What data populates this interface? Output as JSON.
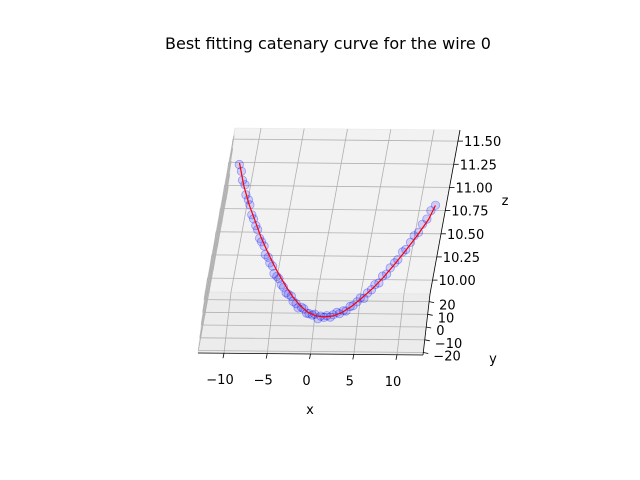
{
  "chart_data": {
    "type": "scatter",
    "projection": "3d",
    "title": "Best fitting catenary curve for the wire 0",
    "xlabel": "x",
    "ylabel": "y",
    "zlabel": "z",
    "xlim": [
      -13,
      13
    ],
    "ylim": [
      -22,
      26
    ],
    "zlim": [
      9.85,
      11.62
    ],
    "xticks": [
      -10,
      -5,
      0,
      5,
      10
    ],
    "yticks": [
      -20,
      -10,
      0,
      10,
      20
    ],
    "zticks": [
      10.0,
      10.25,
      10.5,
      10.75,
      11.0,
      11.25,
      11.5
    ],
    "xtick_labels": [
      "−10",
      "−5",
      "0",
      "5",
      "10"
    ],
    "ytick_labels": [
      "−20",
      "−10",
      "0",
      "10",
      "20"
    ],
    "ztick_labels": [
      "10.00",
      "10.25",
      "10.50",
      "10.75",
      "11.00",
      "11.25",
      "11.50"
    ],
    "grid": true,
    "series": [
      {
        "kind": "scatter",
        "color": "#0000ff",
        "alpha": 0.15,
        "x": [
          -12.0,
          -11.6,
          -11.3,
          -10.9,
          -10.6,
          -10.2,
          -9.9,
          -9.5,
          -9.2,
          -8.8,
          -8.5,
          -8.1,
          -7.8,
          -7.4,
          -7.1,
          -6.7,
          -6.4,
          -6.0,
          -5.7,
          -5.3,
          -5.0,
          -4.6,
          -4.3,
          -3.9,
          -3.6,
          -3.2,
          -2.9,
          -2.5,
          -2.2,
          -1.8,
          -1.5,
          -1.1,
          -0.8,
          -0.4,
          -0.1,
          0.3,
          0.6,
          1.0,
          1.3,
          1.7,
          2.0,
          2.4,
          2.7,
          3.1,
          3.4,
          3.8,
          4.1,
          4.5,
          4.8,
          5.2,
          5.5,
          5.9,
          6.2,
          6.6,
          6.9,
          7.3,
          7.6,
          8.0,
          8.3,
          8.7,
          9.0,
          9.4,
          9.7,
          10.1,
          10.4,
          10.8,
          11.1,
          11.5
        ],
        "y": [
          -1.2,
          0.8,
          -0.4,
          1.1,
          -0.9,
          0.3,
          1.4,
          -1.3,
          0.6,
          -0.2,
          1.0,
          -0.7,
          0.2,
          1.3,
          -1.1,
          0.5,
          -0.3,
          0.9,
          -1.4,
          0.1,
          1.2,
          -0.6,
          0.4,
          -1.0,
          0.7,
          1.5,
          -0.5,
          0.0,
          -1.2,
          0.8,
          1.1,
          -0.8,
          0.3,
          -0.1,
          1.3,
          -1.5,
          0.6,
          -0.4,
          0.9,
          -0.9,
          0.2,
          1.4,
          -0.3,
          0.5,
          -1.1,
          1.0,
          -0.6,
          0.4,
          1.2,
          -1.3,
          0.1,
          -0.2,
          0.8,
          -0.7,
          1.1,
          -1.0,
          0.3,
          0.6,
          -0.4,
          1.3,
          -1.2,
          0.0,
          0.9,
          -0.8,
          0.5,
          -0.5,
          1.0,
          0.2
        ],
        "z": [
          11.6,
          11.5,
          11.42,
          11.35,
          11.27,
          11.2,
          11.13,
          11.06,
          10.99,
          10.93,
          10.87,
          10.8,
          10.75,
          10.69,
          10.63,
          10.58,
          10.53,
          10.48,
          10.43,
          10.38,
          10.34,
          10.3,
          10.26,
          10.22,
          10.18,
          10.15,
          10.12,
          10.09,
          10.06,
          10.04,
          10.02,
          10.0,
          9.98,
          9.97,
          9.96,
          9.95,
          9.95,
          9.95,
          9.95,
          9.96,
          9.97,
          9.98,
          9.99,
          10.01,
          10.03,
          10.05,
          10.08,
          10.11,
          10.14,
          10.17,
          10.21,
          10.25,
          10.29,
          10.33,
          10.38,
          10.43,
          10.48,
          10.53,
          10.58,
          10.64,
          10.7,
          10.76,
          10.82,
          10.88,
          10.95,
          11.02,
          11.09,
          11.16
        ]
      },
      {
        "kind": "line",
        "color": "#ff0000",
        "x": [
          -12.0,
          -11.0,
          -10.0,
          -9.0,
          -8.0,
          -7.0,
          -6.0,
          -5.0,
          -4.0,
          -3.0,
          -2.0,
          -1.0,
          0.0,
          1.0,
          2.0,
          3.0,
          4.0,
          5.0,
          6.0,
          7.0,
          8.0,
          9.0,
          10.0,
          11.0,
          11.5
        ],
        "y": [
          0,
          0,
          0,
          0,
          0,
          0,
          0,
          0,
          0,
          0,
          0,
          0,
          0,
          0,
          0,
          0,
          0,
          0,
          0,
          0,
          0,
          0,
          0,
          0,
          0
        ],
        "z": [
          11.6,
          11.35,
          11.15,
          10.98,
          10.81,
          10.66,
          10.52,
          10.39,
          10.27,
          10.16,
          10.07,
          10.0,
          9.96,
          9.95,
          9.96,
          10.0,
          10.07,
          10.16,
          10.26,
          10.38,
          10.52,
          10.67,
          10.83,
          11.01,
          11.16
        ]
      }
    ]
  }
}
